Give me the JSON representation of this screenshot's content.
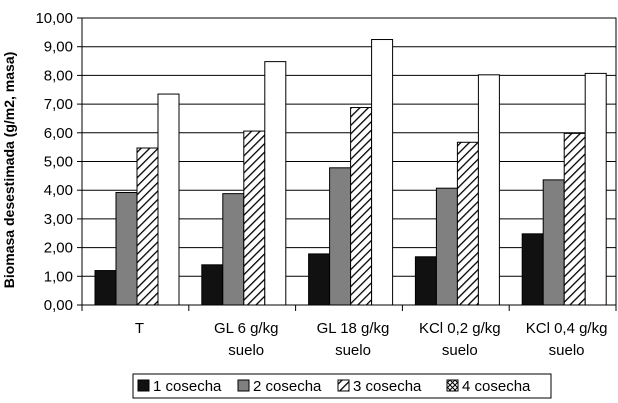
{
  "chart_data": {
    "type": "bar",
    "ylabel": "Biomasa desestimada (g/m2, masa)",
    "ylim": [
      0,
      10
    ],
    "yticks": [
      "0,00",
      "1,00",
      "2,00",
      "3,00",
      "4,00",
      "5,00",
      "6,00",
      "7,00",
      "8,00",
      "9,00",
      "10,00"
    ],
    "categories": [
      [
        "T"
      ],
      [
        "GL 6 g/kg",
        "suelo"
      ],
      [
        "GL 18 g/kg",
        "suelo"
      ],
      [
        "KCl 0,2 g/kg",
        "suelo"
      ],
      [
        "KCl 0,4 g/kg",
        "suelo"
      ]
    ],
    "series": [
      {
        "name": "1 cosecha",
        "values": [
          1.2,
          1.4,
          1.78,
          1.68,
          2.48
        ],
        "fill": "solid-black"
      },
      {
        "name": "2 cosecha",
        "values": [
          3.92,
          3.88,
          4.78,
          4.07,
          4.36
        ],
        "fill": "solid-gray"
      },
      {
        "name": "3 cosecha",
        "values": [
          5.47,
          6.06,
          6.88,
          5.67,
          5.98
        ],
        "fill": "diagonal-hatch"
      },
      {
        "name": "4 cosecha",
        "values": [
          7.35,
          8.48,
          9.25,
          8.02,
          8.07
        ],
        "fill": "white"
      }
    ],
    "legend_position": "bottom",
    "grid": true
  },
  "colors": {
    "series1": "#111111",
    "series2": "#808080",
    "series3_hatch": "#000000",
    "series4": "#ffffff",
    "grid": "#000000"
  }
}
